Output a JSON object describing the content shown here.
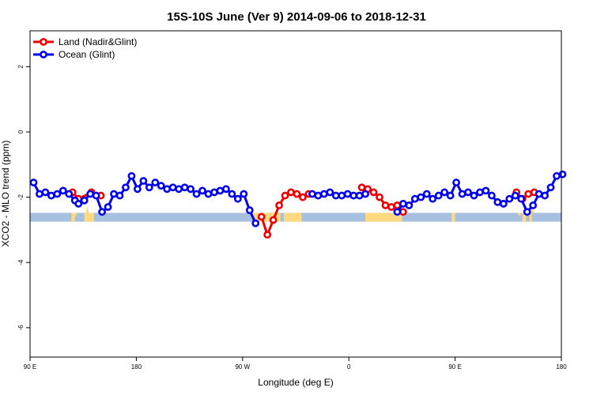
{
  "chart_data": {
    "type": "line",
    "title": "15S-10S June (Ver 9)   2014-09-06 to 2018-12-31",
    "xlabel": "Longitude (deg E)",
    "ylabel": "XCO2 - MLO trend (ppm)",
    "xlim": [
      90,
      540
    ],
    "ylim": [
      -6.9,
      3.1
    ],
    "x_ticks": [
      {
        "value": 90,
        "label": "90 E"
      },
      {
        "value": 180,
        "label": "180"
      },
      {
        "value": 270,
        "label": "90 W"
      },
      {
        "value": 360,
        "label": "0"
      },
      {
        "value": 450,
        "label": "90 E"
      },
      {
        "value": 540,
        "label": "180"
      }
    ],
    "y_ticks": [
      {
        "value": 2,
        "label": "2"
      },
      {
        "value": 0,
        "label": "0"
      },
      {
        "value": -2,
        "label": "-2"
      },
      {
        "value": -4,
        "label": "-4"
      },
      {
        "value": -6,
        "label": "-6"
      }
    ],
    "grid": false,
    "legend_position": "top-left",
    "legend": [
      {
        "label": "Land (Nadir&Glint)",
        "color": "#ee0000"
      },
      {
        "label": "Ocean (Glint)",
        "color": "#0000ee"
      }
    ],
    "land_mask": {
      "y_range": [
        -2.75,
        -2.48
      ],
      "ocean_color": "#a8c0e0",
      "land_color": "#ffd980",
      "land_segments": [
        [
          125,
          128
        ],
        [
          136,
          144
        ],
        [
          279,
          302
        ],
        [
          305,
          320
        ],
        [
          374,
          397
        ],
        [
          397,
          405
        ],
        [
          447,
          450
        ],
        [
          507,
          510
        ],
        [
          513,
          515
        ]
      ],
      "land_bumps": [
        [
          127,
          130,
          -2.6
        ],
        [
          137,
          140,
          -2.3
        ],
        [
          503,
          506,
          -2.6
        ],
        [
          514,
          517,
          -2.3
        ]
      ]
    },
    "series": [
      {
        "name": "Land (Nadir&Glint)",
        "color": "#ee0000",
        "x": [
          126,
          131,
          142,
          150,
          286,
          291,
          296,
          301,
          306,
          311,
          316,
          321,
          326,
          371,
          376,
          381,
          386,
          391,
          396,
          401,
          406,
          502,
          507,
          512,
          517
        ],
        "y": [
          -1.85,
          -2.05,
          -1.85,
          -1.95,
          -2.6,
          -3.15,
          -2.7,
          -2.25,
          -1.95,
          -1.85,
          -1.9,
          -2.0,
          -1.9,
          -1.7,
          -1.75,
          -1.85,
          -2.0,
          -2.25,
          -2.3,
          -2.25,
          -2.45,
          -1.85,
          -2.05,
          -1.9,
          -1.85
        ]
      },
      {
        "name": "Ocean (Glint)",
        "color": "#0000ee",
        "x": [
          93,
          98,
          103,
          108,
          113,
          118,
          123,
          128,
          131,
          136,
          141,
          146,
          151,
          156,
          161,
          166,
          171,
          176,
          181,
          186,
          191,
          196,
          201,
          206,
          211,
          216,
          221,
          226,
          231,
          236,
          241,
          246,
          251,
          256,
          261,
          266,
          271,
          276,
          281,
          329,
          334,
          339,
          344,
          349,
          354,
          359,
          364,
          369,
          374,
          401,
          406,
          411,
          416,
          421,
          426,
          431,
          436,
          441,
          446,
          451,
          456,
          461,
          466,
          471,
          476,
          481,
          486,
          491,
          496,
          501,
          506,
          511,
          516,
          521,
          526,
          531,
          536,
          541
        ],
        "y": [
          -1.55,
          -1.9,
          -1.85,
          -1.95,
          -1.9,
          -1.8,
          -1.9,
          -2.1,
          -2.2,
          -2.1,
          -1.9,
          -1.95,
          -2.45,
          -2.3,
          -1.9,
          -1.95,
          -1.7,
          -1.35,
          -1.75,
          -1.5,
          -1.7,
          -1.55,
          -1.65,
          -1.75,
          -1.7,
          -1.75,
          -1.7,
          -1.75,
          -1.9,
          -1.8,
          -1.9,
          -1.85,
          -1.8,
          -1.75,
          -1.9,
          -2.05,
          -1.9,
          -2.4,
          -2.8,
          -1.9,
          -1.95,
          -1.9,
          -1.85,
          -1.95,
          -1.95,
          -1.9,
          -1.95,
          -1.95,
          -1.9,
          -2.45,
          -2.2,
          -2.25,
          -2.05,
          -2.0,
          -1.9,
          -2.05,
          -1.95,
          -1.85,
          -1.95,
          -1.55,
          -1.9,
          -1.85,
          -1.95,
          -1.85,
          -1.8,
          -1.95,
          -2.15,
          -2.2,
          -2.05,
          -1.95,
          -2.05,
          -2.45,
          -2.25,
          -1.9,
          -1.95,
          -1.7,
          -1.35,
          -1.3
        ]
      }
    ]
  }
}
